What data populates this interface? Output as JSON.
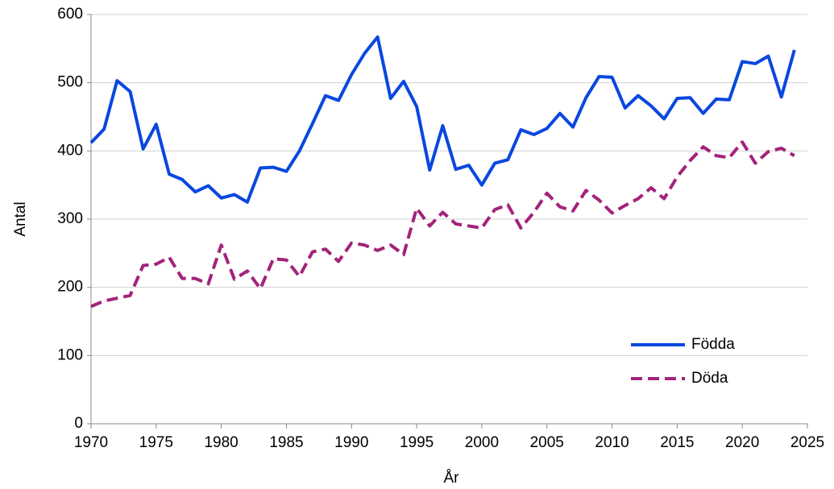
{
  "chart_data": {
    "type": "line",
    "x_label": "År",
    "y_label": "Antal",
    "x": [
      1970,
      1971,
      1972,
      1973,
      1974,
      1975,
      1976,
      1977,
      1978,
      1979,
      1980,
      1981,
      1982,
      1983,
      1984,
      1985,
      1986,
      1987,
      1988,
      1989,
      1990,
      1991,
      1992,
      1993,
      1994,
      1995,
      1996,
      1997,
      1998,
      1999,
      2000,
      2001,
      2002,
      2003,
      2004,
      2005,
      2006,
      2007,
      2008,
      2009,
      2010,
      2011,
      2012,
      2013,
      2014,
      2015,
      2016,
      2017,
      2018,
      2019,
      2020,
      2021,
      2022,
      2023,
      2024
    ],
    "series": [
      {
        "name": "Födda",
        "color": "#0a47e0",
        "dash": false,
        "values": [
          412,
          432,
          503,
          487,
          403,
          439,
          366,
          358,
          340,
          349,
          331,
          336,
          325,
          375,
          376,
          370,
          400,
          440,
          481,
          474,
          512,
          543,
          567,
          477,
          502,
          465,
          372,
          437,
          373,
          379,
          350,
          382,
          387,
          431,
          424,
          433,
          455,
          435,
          478,
          509,
          508,
          463,
          481,
          466,
          447,
          477,
          478,
          455,
          476,
          475,
          531,
          528,
          539,
          479,
          548
        ]
      },
      {
        "name": "Döda",
        "color": "#a3237a",
        "dash": true,
        "values": [
          172,
          180,
          184,
          188,
          232,
          234,
          244,
          213,
          213,
          205,
          262,
          212,
          224,
          198,
          242,
          240,
          216,
          252,
          256,
          238,
          265,
          262,
          254,
          262,
          248,
          316,
          290,
          310,
          293,
          290,
          287,
          314,
          321,
          287,
          310,
          338,
          318,
          312,
          342,
          328,
          309,
          320,
          330,
          346,
          330,
          362,
          386,
          406,
          393,
          390,
          413,
          382,
          399,
          404,
          393
        ]
      }
    ],
    "xlim": [
      1970,
      2025
    ],
    "xticks": [
      1970,
      1975,
      1980,
      1985,
      1990,
      1995,
      2000,
      2005,
      2010,
      2015,
      2020,
      2025
    ],
    "ylim": [
      0,
      600
    ],
    "yticks": [
      0,
      100,
      200,
      300,
      400,
      500,
      600
    ],
    "grid": true,
    "legend": "lower right"
  }
}
